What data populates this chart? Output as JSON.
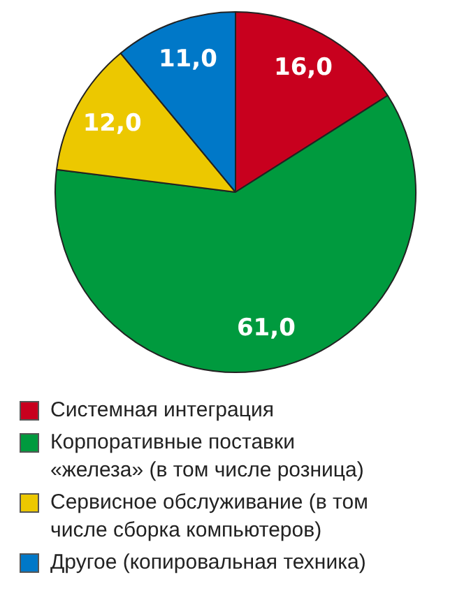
{
  "chart_data": {
    "type": "pie",
    "categories": [
      "Системная интеграция",
      "Корпоративные поставки «железа» (в том числе розница)",
      "Сервисное обслуживание (в том числе сборка компьютеров)",
      "Другое (копировальная техника)"
    ],
    "values": [
      16.0,
      61.0,
      12.0,
      11.0
    ],
    "colors": [
      "#c8001e",
      "#009a3e",
      "#ecc800",
      "#0078c8"
    ],
    "value_labels": [
      "16,0",
      "61,0",
      "12,0",
      "11,0"
    ],
    "legend": "bottom"
  }
}
